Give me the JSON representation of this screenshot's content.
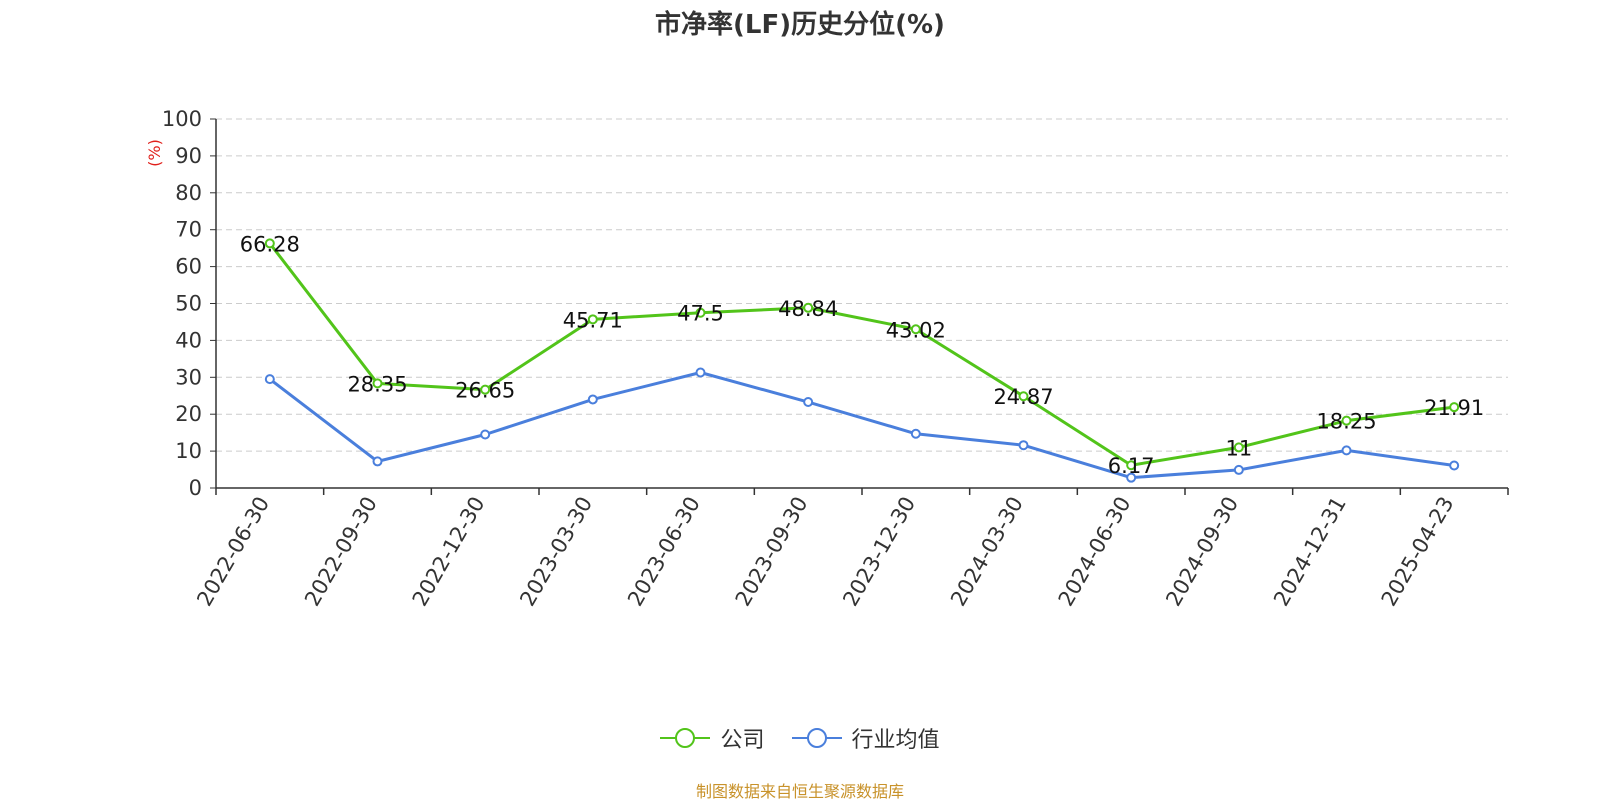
{
  "chart_data": {
    "type": "line",
    "title": "市净率(LF)历史分位(%)",
    "ylabel": "(%)",
    "ylim": [
      0,
      100
    ],
    "yticks": [
      "0",
      "10",
      "20",
      "30",
      "40",
      "50",
      "60",
      "70",
      "80",
      "90",
      "100"
    ],
    "grid": true,
    "legend_position": "bottom",
    "categories": [
      "2022-06-30",
      "2022-09-30",
      "2022-12-30",
      "2023-03-30",
      "2023-06-30",
      "2023-09-30",
      "2023-12-30",
      "2024-03-30",
      "2024-06-30",
      "2024-09-30",
      "2024-12-31",
      "2025-04-23"
    ],
    "series": [
      {
        "name": "公司",
        "color": "#52c41a",
        "values": [
          66.28,
          28.35,
          26.65,
          45.71,
          47.5,
          48.84,
          43.02,
          24.87,
          6.17,
          11,
          18.25,
          21.91
        ],
        "labels": [
          "66.28",
          "28.35",
          "26.65",
          "45.71",
          "47.5",
          "48.84",
          "43.02",
          "24.87",
          "6.17",
          "11",
          "18.25",
          "21.91"
        ]
      },
      {
        "name": "行业均值",
        "color": "#4a7fdc",
        "values": [
          29.5,
          7.2,
          14.5,
          24.0,
          31.3,
          23.3,
          14.7,
          11.6,
          2.8,
          4.9,
          10.2,
          6.1
        ]
      }
    ]
  },
  "source": {
    "text": "制图数据来自恒生聚源数据库",
    "color": "#c8922a"
  },
  "ylabel_color": "#e0201b"
}
